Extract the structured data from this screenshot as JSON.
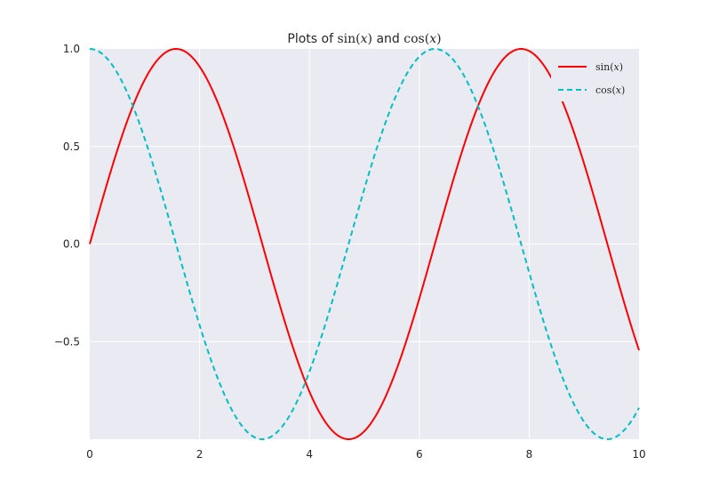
{
  "chart_data": {
    "type": "line",
    "title": {
      "prefix": "Plots of",
      "fn1": "sin",
      "arg1": "x",
      "conjunction": "and",
      "fn2": "cos",
      "arg2": "x"
    },
    "xlabel": "",
    "ylabel": "",
    "xlim": [
      0,
      10
    ],
    "ylim": [
      -1,
      1
    ],
    "x_ticks": [
      0,
      2,
      4,
      6,
      8,
      10
    ],
    "x_tick_labels": [
      "0",
      "2",
      "4",
      "6",
      "8",
      "10"
    ],
    "y_ticks": [
      1.0,
      0.5,
      0.0,
      -0.5
    ],
    "y_tick_labels": [
      "1.0",
      "0.5",
      "0.0",
      "−0.5"
    ],
    "grid": true,
    "legend_position": "top-right",
    "background": "#eaeaf2",
    "series": [
      {
        "name": "sin(x)",
        "legend": {
          "fn": "sin",
          "arg": "x"
        },
        "color": "#ff0000",
        "linestyle": "solid",
        "x": [
          0,
          0.5,
          1,
          1.5,
          1.5708,
          2,
          2.5,
          3,
          3.5,
          4,
          4.5,
          4.7124,
          5,
          5.5,
          6,
          6.5,
          7,
          7.5,
          7.854,
          8,
          8.5,
          9,
          9.5,
          10
        ],
        "y": [
          0.0,
          0.479,
          0.841,
          0.997,
          1.0,
          0.909,
          0.598,
          0.141,
          -0.351,
          -0.757,
          -0.978,
          -1.0,
          -0.959,
          -0.706,
          -0.279,
          0.215,
          0.657,
          0.938,
          1.0,
          0.989,
          0.798,
          0.412,
          -0.075,
          -0.544
        ]
      },
      {
        "name": "cos(x)",
        "legend": {
          "fn": "cos",
          "arg": "x"
        },
        "color": "#00bfbf",
        "linestyle": "dashed",
        "x": [
          0,
          0.5,
          1,
          1.5,
          2,
          2.5,
          3,
          3.1416,
          3.5,
          4,
          4.5,
          5,
          5.5,
          6,
          6.2832,
          6.5,
          7,
          7.5,
          8,
          8.5,
          9,
          9.4248,
          9.5,
          10
        ],
        "y": [
          1.0,
          0.878,
          0.54,
          0.071,
          -0.416,
          -0.801,
          -0.99,
          -1.0,
          -0.936,
          -0.654,
          -0.211,
          0.284,
          0.709,
          0.96,
          1.0,
          0.977,
          0.754,
          0.347,
          -0.146,
          -0.602,
          -0.911,
          -1.0,
          -0.997,
          -0.839
        ]
      }
    ]
  }
}
